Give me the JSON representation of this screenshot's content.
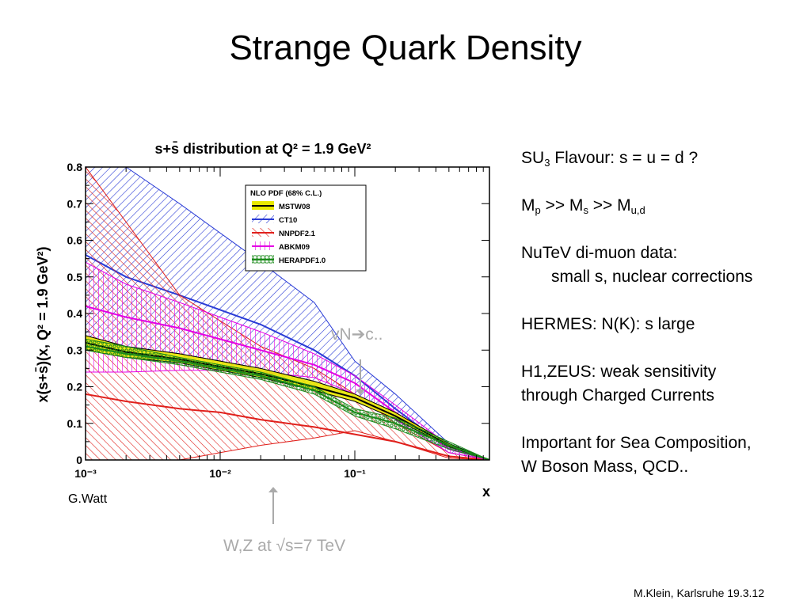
{
  "slide": {
    "title": "Strange Quark Density",
    "credit": "G.Watt",
    "footer": "M.Klein, Karlsruhe 19.3.12"
  },
  "annotations": {
    "nu_label": "vN",
    "nu_arrow": "➔",
    "nu_target": "c..",
    "wz_label": "W,Z at √s=7 TeV"
  },
  "notes": {
    "su3_pre": "SU",
    "su3_sub": "3",
    "su3_post": " Flavour: s = u = d ?",
    "mass_p": "M",
    "mass_p_sub": "p",
    "mass_gt1": " >>  M",
    "mass_s_sub": "s",
    "mass_gt2": "  >> M",
    "mass_ud_sub": "u,d",
    "nutev_line1": "NuTeV di-muon data:",
    "nutev_line2": "small s, nuclear corrections",
    "hermes": "HERMES: N(K): s large",
    "h1_line1": "H1,ZEUS: weak sensitivity",
    "h1_line2": "through Charged Currents",
    "imp_line1": "Important for Sea Composition,",
    "imp_line2": "W Boson Mass, QCD.."
  },
  "chart_data": {
    "type": "area",
    "title": "s+s̄ distribution at Q² = 1.9 GeV²",
    "xlabel": "x",
    "ylabel": "x(s+s̄)(x, Q² = 1.9 GeV²)",
    "xscale": "log",
    "xlim": [
      0.001,
      1.0
    ],
    "ylim": [
      0,
      0.8
    ],
    "x_ticks": [
      "10⁻³",
      "10⁻²",
      "10⁻¹"
    ],
    "y_ticks": [
      "0",
      "0.1",
      "0.2",
      "0.3",
      "0.4",
      "0.5",
      "0.6",
      "0.7",
      "0.8"
    ],
    "legend": {
      "title": "NLO PDF (68% C.L.)",
      "placement": "top-center",
      "entries": [
        "MSTW08",
        "CT10",
        "NNPDF2.1",
        "ABKM09",
        "HERAPDF1.0"
      ]
    },
    "x": [
      0.001,
      0.002,
      0.005,
      0.01,
      0.02,
      0.05,
      0.1,
      0.2,
      0.5,
      1.0
    ],
    "series": [
      {
        "name": "MSTW08",
        "color": "#e8e800",
        "line": "#000000",
        "central": [
          0.32,
          0.295,
          0.275,
          0.255,
          0.235,
          0.2,
          0.17,
          0.12,
          0.04,
          0
        ],
        "lower": [
          0.3,
          0.28,
          0.265,
          0.245,
          0.225,
          0.19,
          0.16,
          0.112,
          0.036,
          0
        ],
        "upper": [
          0.34,
          0.31,
          0.29,
          0.27,
          0.25,
          0.215,
          0.18,
          0.13,
          0.045,
          0
        ]
      },
      {
        "name": "CT10",
        "color": "#2a3cd6",
        "line": "#2a3cd6",
        "central": [
          0.56,
          0.5,
          0.45,
          0.41,
          0.37,
          0.3,
          0.23,
          0.14,
          0.03,
          0
        ],
        "lower": [
          0.33,
          0.31,
          0.29,
          0.27,
          0.245,
          0.195,
          0.17,
          0.11,
          0.02,
          0
        ],
        "upper": [
          0.8,
          0.8,
          0.7,
          0.62,
          0.54,
          0.43,
          0.27,
          0.18,
          0.045,
          0
        ]
      },
      {
        "name": "NNPDF2.1",
        "color": "#e0201c",
        "line": "#e0201c",
        "central": [
          0.18,
          0.16,
          0.14,
          0.13,
          0.11,
          0.09,
          0.07,
          0.05,
          0.01,
          0
        ],
        "lower": [
          0,
          0,
          0,
          0.02,
          0.04,
          0.06,
          0.08,
          0.05,
          0.005,
          0
        ],
        "upper": [
          0.8,
          0.65,
          0.45,
          0.38,
          0.31,
          0.25,
          0.18,
          0.1,
          0.02,
          0
        ]
      },
      {
        "name": "ABKM09",
        "color": "#e400e4",
        "line": "#e400e4",
        "central": [
          0.42,
          0.39,
          0.36,
          0.33,
          0.3,
          0.26,
          0.21,
          0.13,
          0.03,
          0
        ],
        "lower": [
          0.24,
          0.24,
          0.245,
          0.245,
          0.24,
          0.225,
          0.18,
          0.11,
          0.02,
          0
        ],
        "upper": [
          0.54,
          0.48,
          0.43,
          0.39,
          0.35,
          0.29,
          0.23,
          0.15,
          0.04,
          0
        ]
      },
      {
        "name": "HERAPDF1.0",
        "color": "#1a8a1a",
        "line": "#1a8a1a",
        "central": [
          0.31,
          0.29,
          0.27,
          0.25,
          0.23,
          0.19,
          0.13,
          0.1,
          0.04,
          0
        ],
        "lower": [
          0.3,
          0.28,
          0.26,
          0.24,
          0.22,
          0.18,
          0.12,
          0.085,
          0.03,
          0
        ],
        "upper": [
          0.33,
          0.31,
          0.28,
          0.26,
          0.24,
          0.2,
          0.14,
          0.115,
          0.05,
          0
        ]
      }
    ]
  }
}
